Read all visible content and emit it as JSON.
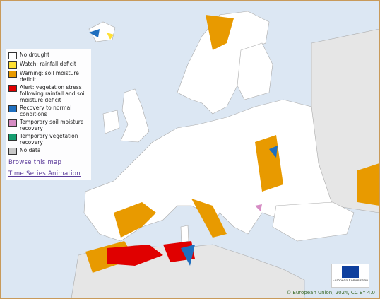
{
  "legend": [
    {
      "label": "No drought",
      "color": "#ffffff"
    },
    {
      "label": "Watch: rainfall deficit",
      "color": "#ffe033"
    },
    {
      "label": "Warning: soil moisture deficit",
      "color": "#e89a00"
    },
    {
      "label": "Alert: vegetation stress following rainfall and soil moisture  deficit",
      "color": "#e00000"
    },
    {
      "label": "Recovery to normal conditions",
      "color": "#1f6fbf"
    },
    {
      "label": "Temporary soil moisture recovery",
      "color": "#d68cc4"
    },
    {
      "label": "Temporary vegetation recovery",
      "color": "#159e70"
    },
    {
      "label": "No data",
      "color": "#c8c8c8"
    }
  ],
  "links": [
    "Browse this map",
    "Time Series Animation"
  ],
  "logo_text": "European Commission",
  "copyright": "© European Union, 2024, CC BY 4.0"
}
